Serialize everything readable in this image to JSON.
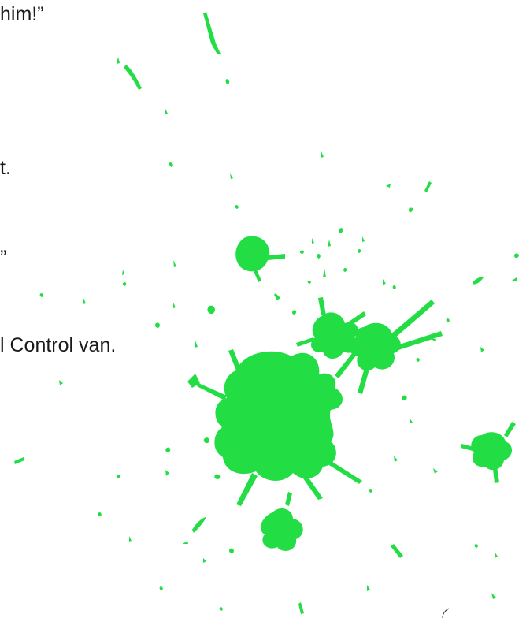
{
  "text_lines": [
    "him!”",
    "t.",
    "”",
    "l Control van."
  ],
  "colors": {
    "text": "#1a1a1a",
    "splatter": "#22dd44",
    "background": "#ffffff"
  }
}
